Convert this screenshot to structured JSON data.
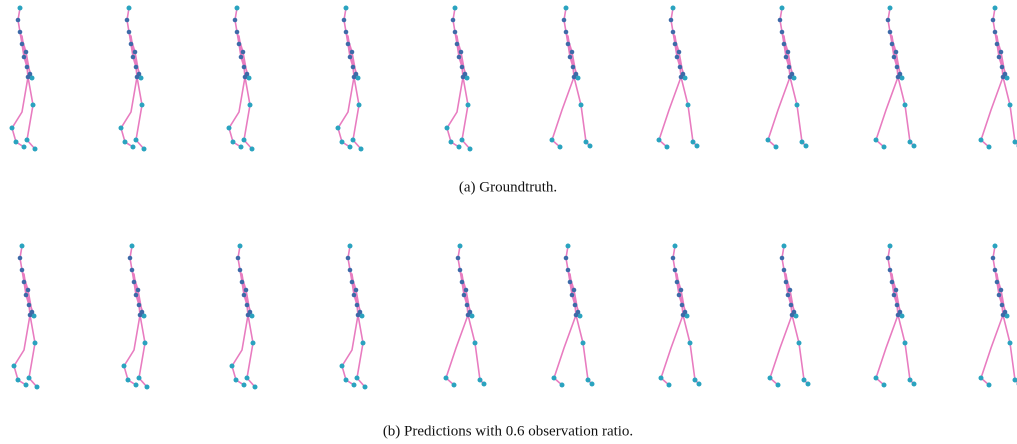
{
  "figure": {
    "rows": [
      {
        "caption": "(a) Groundtruth."
      },
      {
        "caption": "(b) Predictions with 0.6 observation ratio."
      }
    ]
  }
}
